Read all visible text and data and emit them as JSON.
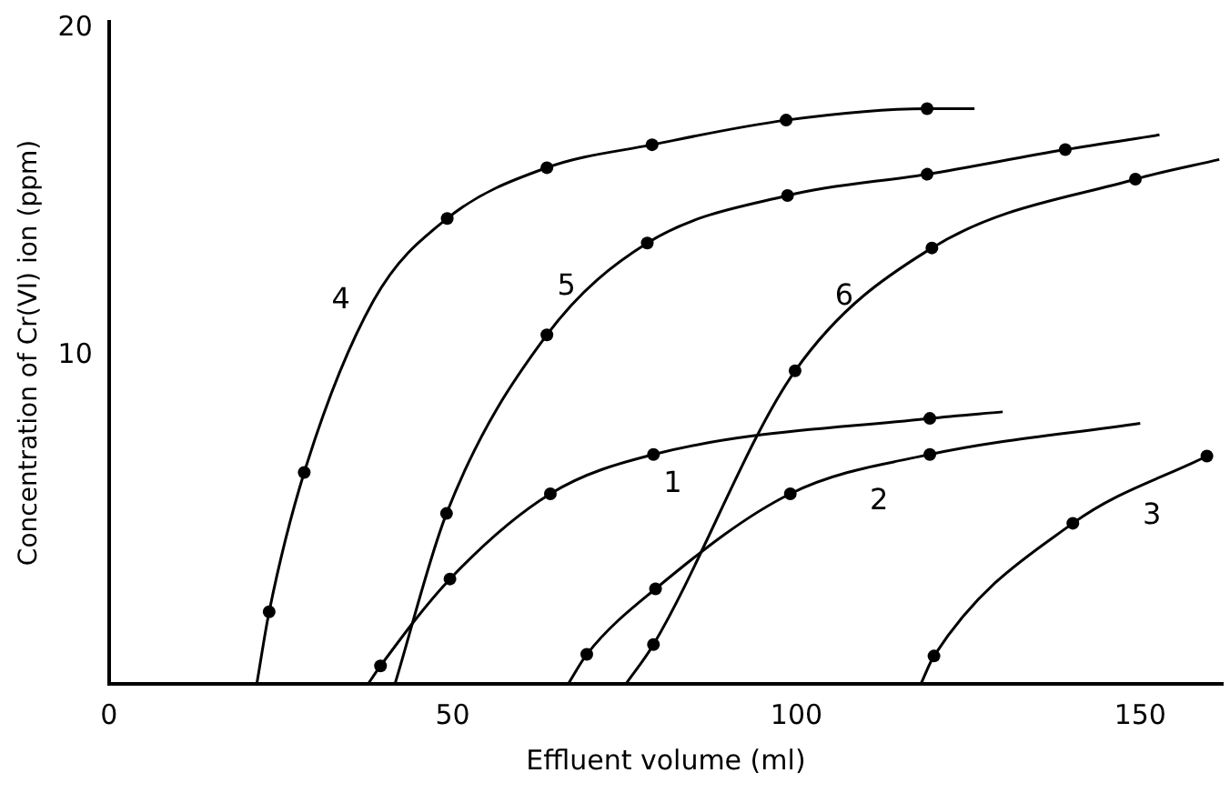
{
  "chart_data": {
    "type": "line",
    "xlabel": "Effluent volume (ml)",
    "ylabel": "Concentration of Cr(VI) ion (ppm)",
    "xlim": [
      0,
      162
    ],
    "ylim": [
      0,
      20.2
    ],
    "xticks": [
      0,
      50,
      100,
      150
    ],
    "yticks": [
      10,
      20
    ],
    "grid": false,
    "series": [
      {
        "color": "#000000",
        "marker": "none",
        "x": [
          37.7,
          39.5,
          49.6,
          64.2,
          79.2,
          119.4,
          130
        ],
        "values": [
          0,
          0.55,
          3.2,
          5.8,
          7.0,
          8.1,
          8.3
        ]
      },
      {
        "color": "#000000",
        "marker": "none",
        "x": [
          66.8,
          69.5,
          79.5,
          99.1,
          119.4,
          150
        ],
        "values": [
          0,
          0.9,
          2.9,
          5.8,
          7.0,
          7.95
        ]
      },
      {
        "color": "#000000",
        "marker": "none",
        "x": [
          118.1,
          120,
          140.2,
          159.7
        ],
        "values": [
          0,
          0.85,
          4.9,
          6.95
        ]
      },
      {
        "color": "#000000",
        "marker": "none",
        "x": [
          21.5,
          23.3,
          28.4,
          38.5,
          49.2,
          63.7,
          79,
          98.5,
          119,
          125.9
        ],
        "values": [
          0,
          2.2,
          6.45,
          11.7,
          14.2,
          15.75,
          16.45,
          17.2,
          17.55,
          17.55
        ]
      },
      {
        "color": "#000000",
        "marker": "none",
        "x": [
          41.6,
          49.1,
          63.7,
          78.3,
          98.7,
          119,
          139.1,
          152.8
        ],
        "values": [
          0,
          5.2,
          10.65,
          13.45,
          14.9,
          15.55,
          16.3,
          16.75
        ]
      },
      {
        "color": "#000000",
        "marker": "none",
        "x": [
          75.2,
          79.2,
          99.8,
          119.7,
          149.3,
          161.5
        ],
        "values": [
          0,
          1.2,
          9.55,
          13.3,
          15.4,
          16.0
        ]
      },
      {
        "type": "scatter",
        "color": "#000000",
        "marker": "circle",
        "x": [
          39.5,
          49.6,
          64.2,
          79.2,
          119.4,
          69.5,
          79.5,
          99.1,
          119.4,
          120,
          140.2,
          159.7,
          23.3,
          28.4,
          49.2,
          63.7,
          79,
          98.5,
          119,
          49.1,
          63.7,
          78.3,
          98.7,
          119,
          139.1,
          79.2,
          99.8,
          119.7,
          149.3
        ],
        "values": [
          0.55,
          3.2,
          5.8,
          7.0,
          8.1,
          0.9,
          2.9,
          5.8,
          7.0,
          0.85,
          4.9,
          6.95,
          2.2,
          6.45,
          14.2,
          15.75,
          16.45,
          17.2,
          17.55,
          5.2,
          10.65,
          13.45,
          14.9,
          15.55,
          16.3,
          1.2,
          9.55,
          13.3,
          15.4
        ]
      }
    ],
    "annotations": [
      {
        "text": "1",
        "x": 82,
        "y": 7.08
      },
      {
        "text": "2",
        "x": 112,
        "y": 6.56
      },
      {
        "text": "3",
        "x": 151.7,
        "y": 6.11
      },
      {
        "text": "4",
        "x": 38.5,
        "y": 11.7
      },
      {
        "text": "5",
        "x": 71.3,
        "y": 12.1
      },
      {
        "text": "6",
        "x": 111.7,
        "y": 11.8
      }
    ]
  }
}
